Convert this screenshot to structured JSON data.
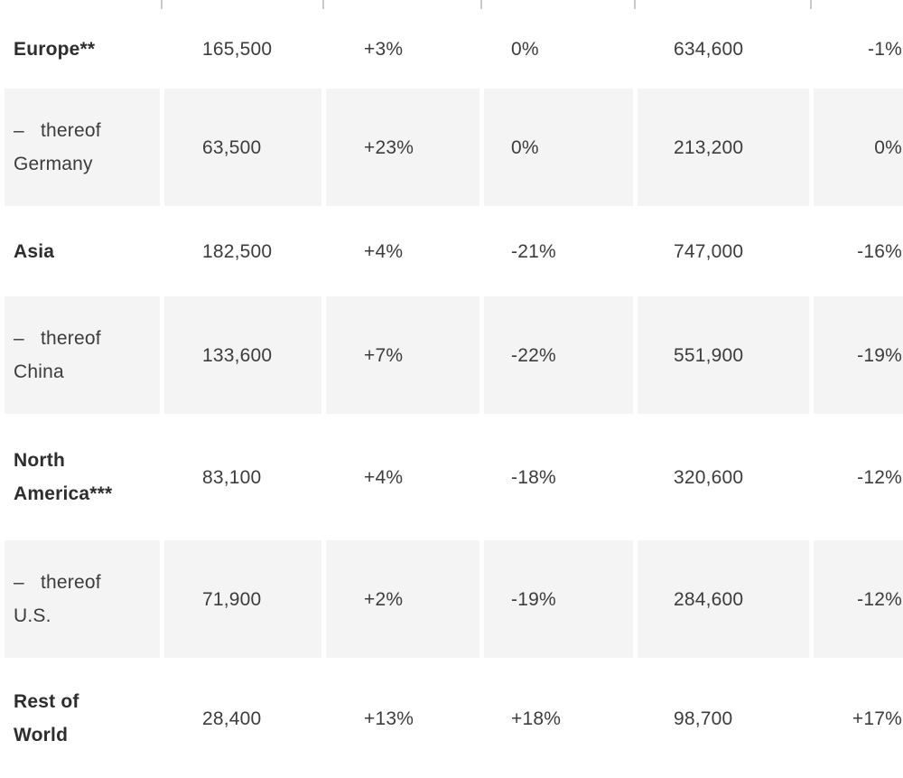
{
  "colors": {
    "shaded_row_background": "#f4f4f4",
    "text": "#3c3c3c",
    "emphasized_text": "#2d2d2d",
    "divider_tick": "#c9c9c9"
  },
  "chart_data": {
    "type": "table",
    "title": "",
    "notes": "Cropped regional results table; column headers are outside the visible crop. Columns: region, period value, change %, change %, cumulative value, change %.",
    "rows": [
      {
        "label": "Europe**",
        "emphasis": true,
        "shaded": false,
        "values": [
          "165,500",
          "+3%",
          "0%",
          "634,600",
          "-1%"
        ]
      },
      {
        "label": "–   thereof Germany",
        "emphasis": false,
        "shaded": true,
        "values": [
          "63,500",
          "+23%",
          "0%",
          "213,200",
          "0%"
        ]
      },
      {
        "label": "Asia",
        "emphasis": true,
        "shaded": false,
        "values": [
          "182,500",
          "+4%",
          "-21%",
          "747,000",
          "-16%"
        ]
      },
      {
        "label": "–   thereof China",
        "emphasis": false,
        "shaded": true,
        "values": [
          "133,600",
          "+7%",
          "-22%",
          "551,900",
          "-19%"
        ]
      },
      {
        "label": "North America***",
        "emphasis": true,
        "shaded": false,
        "values": [
          "83,100",
          "+4%",
          "-18%",
          "320,600",
          "-12%"
        ]
      },
      {
        "label": "–   thereof U.S.",
        "emphasis": false,
        "shaded": true,
        "values": [
          "71,900",
          "+2%",
          "-19%",
          "284,600",
          "-12%"
        ]
      },
      {
        "label": "Rest of World",
        "emphasis": true,
        "shaded": false,
        "values": [
          "28,400",
          "+13%",
          "+18%",
          "98,700",
          "+17%"
        ]
      }
    ]
  }
}
